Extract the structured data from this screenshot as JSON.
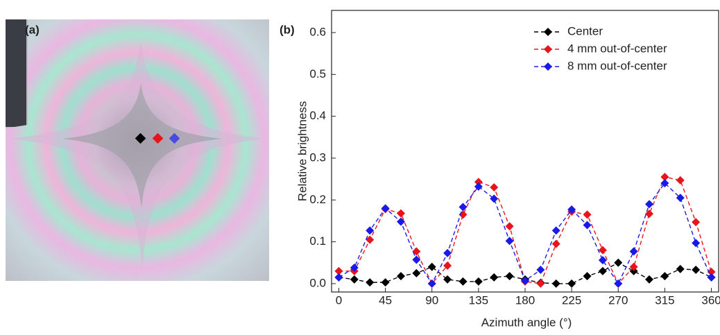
{
  "photo": {
    "label": "(a)"
  },
  "chart_data": {
    "type": "line",
    "panel_label": "(b)",
    "x_label": "Azimuth angle (°)",
    "y_label": "Relative brightness",
    "x": [
      0,
      15,
      30,
      45,
      60,
      75,
      90,
      105,
      120,
      135,
      150,
      165,
      180,
      195,
      210,
      225,
      240,
      255,
      270,
      285,
      300,
      315,
      330,
      345,
      360
    ],
    "series": [
      {
        "name": "Center",
        "color": "#000000",
        "values": [
          0.015,
          0.01,
          0.003,
          0.003,
          0.018,
          0.025,
          0.04,
          0.01,
          0.005,
          0.005,
          0.015,
          0.018,
          0.01,
          0.002,
          0.0,
          0.0,
          0.018,
          0.03,
          0.05,
          0.03,
          0.01,
          0.018,
          0.035,
          0.033,
          0.015
        ]
      },
      {
        "name": "4 mm out-of-center",
        "color": "#e8141c",
        "values": [
          0.03,
          0.03,
          0.105,
          0.178,
          0.168,
          0.077,
          0.0,
          0.043,
          0.165,
          0.243,
          0.23,
          0.137,
          0.005,
          0.0,
          0.095,
          0.172,
          0.165,
          0.08,
          0.0,
          0.04,
          0.167,
          0.255,
          0.247,
          0.147,
          0.028
        ]
      },
      {
        "name": "8 mm out-of-center",
        "color": "#1a1ae8",
        "values": [
          0.015,
          0.038,
          0.127,
          0.18,
          0.148,
          0.057,
          0.0,
          0.073,
          0.183,
          0.232,
          0.203,
          0.102,
          0.007,
          0.033,
          0.127,
          0.177,
          0.14,
          0.056,
          0.0,
          0.077,
          0.19,
          0.24,
          0.205,
          0.097,
          0.015
        ]
      }
    ],
    "xlim": [
      -7,
      367
    ],
    "ylim": [
      -0.02,
      0.653
    ],
    "xticks": [
      0,
      45,
      90,
      135,
      180,
      225,
      270,
      315,
      360
    ],
    "yticks": [
      {
        "value": 0,
        "label": "0.0"
      },
      0.1,
      0.2,
      0.3,
      0.4,
      0.5,
      0.6
    ],
    "legend": "upper right",
    "line_style": "dashed"
  }
}
